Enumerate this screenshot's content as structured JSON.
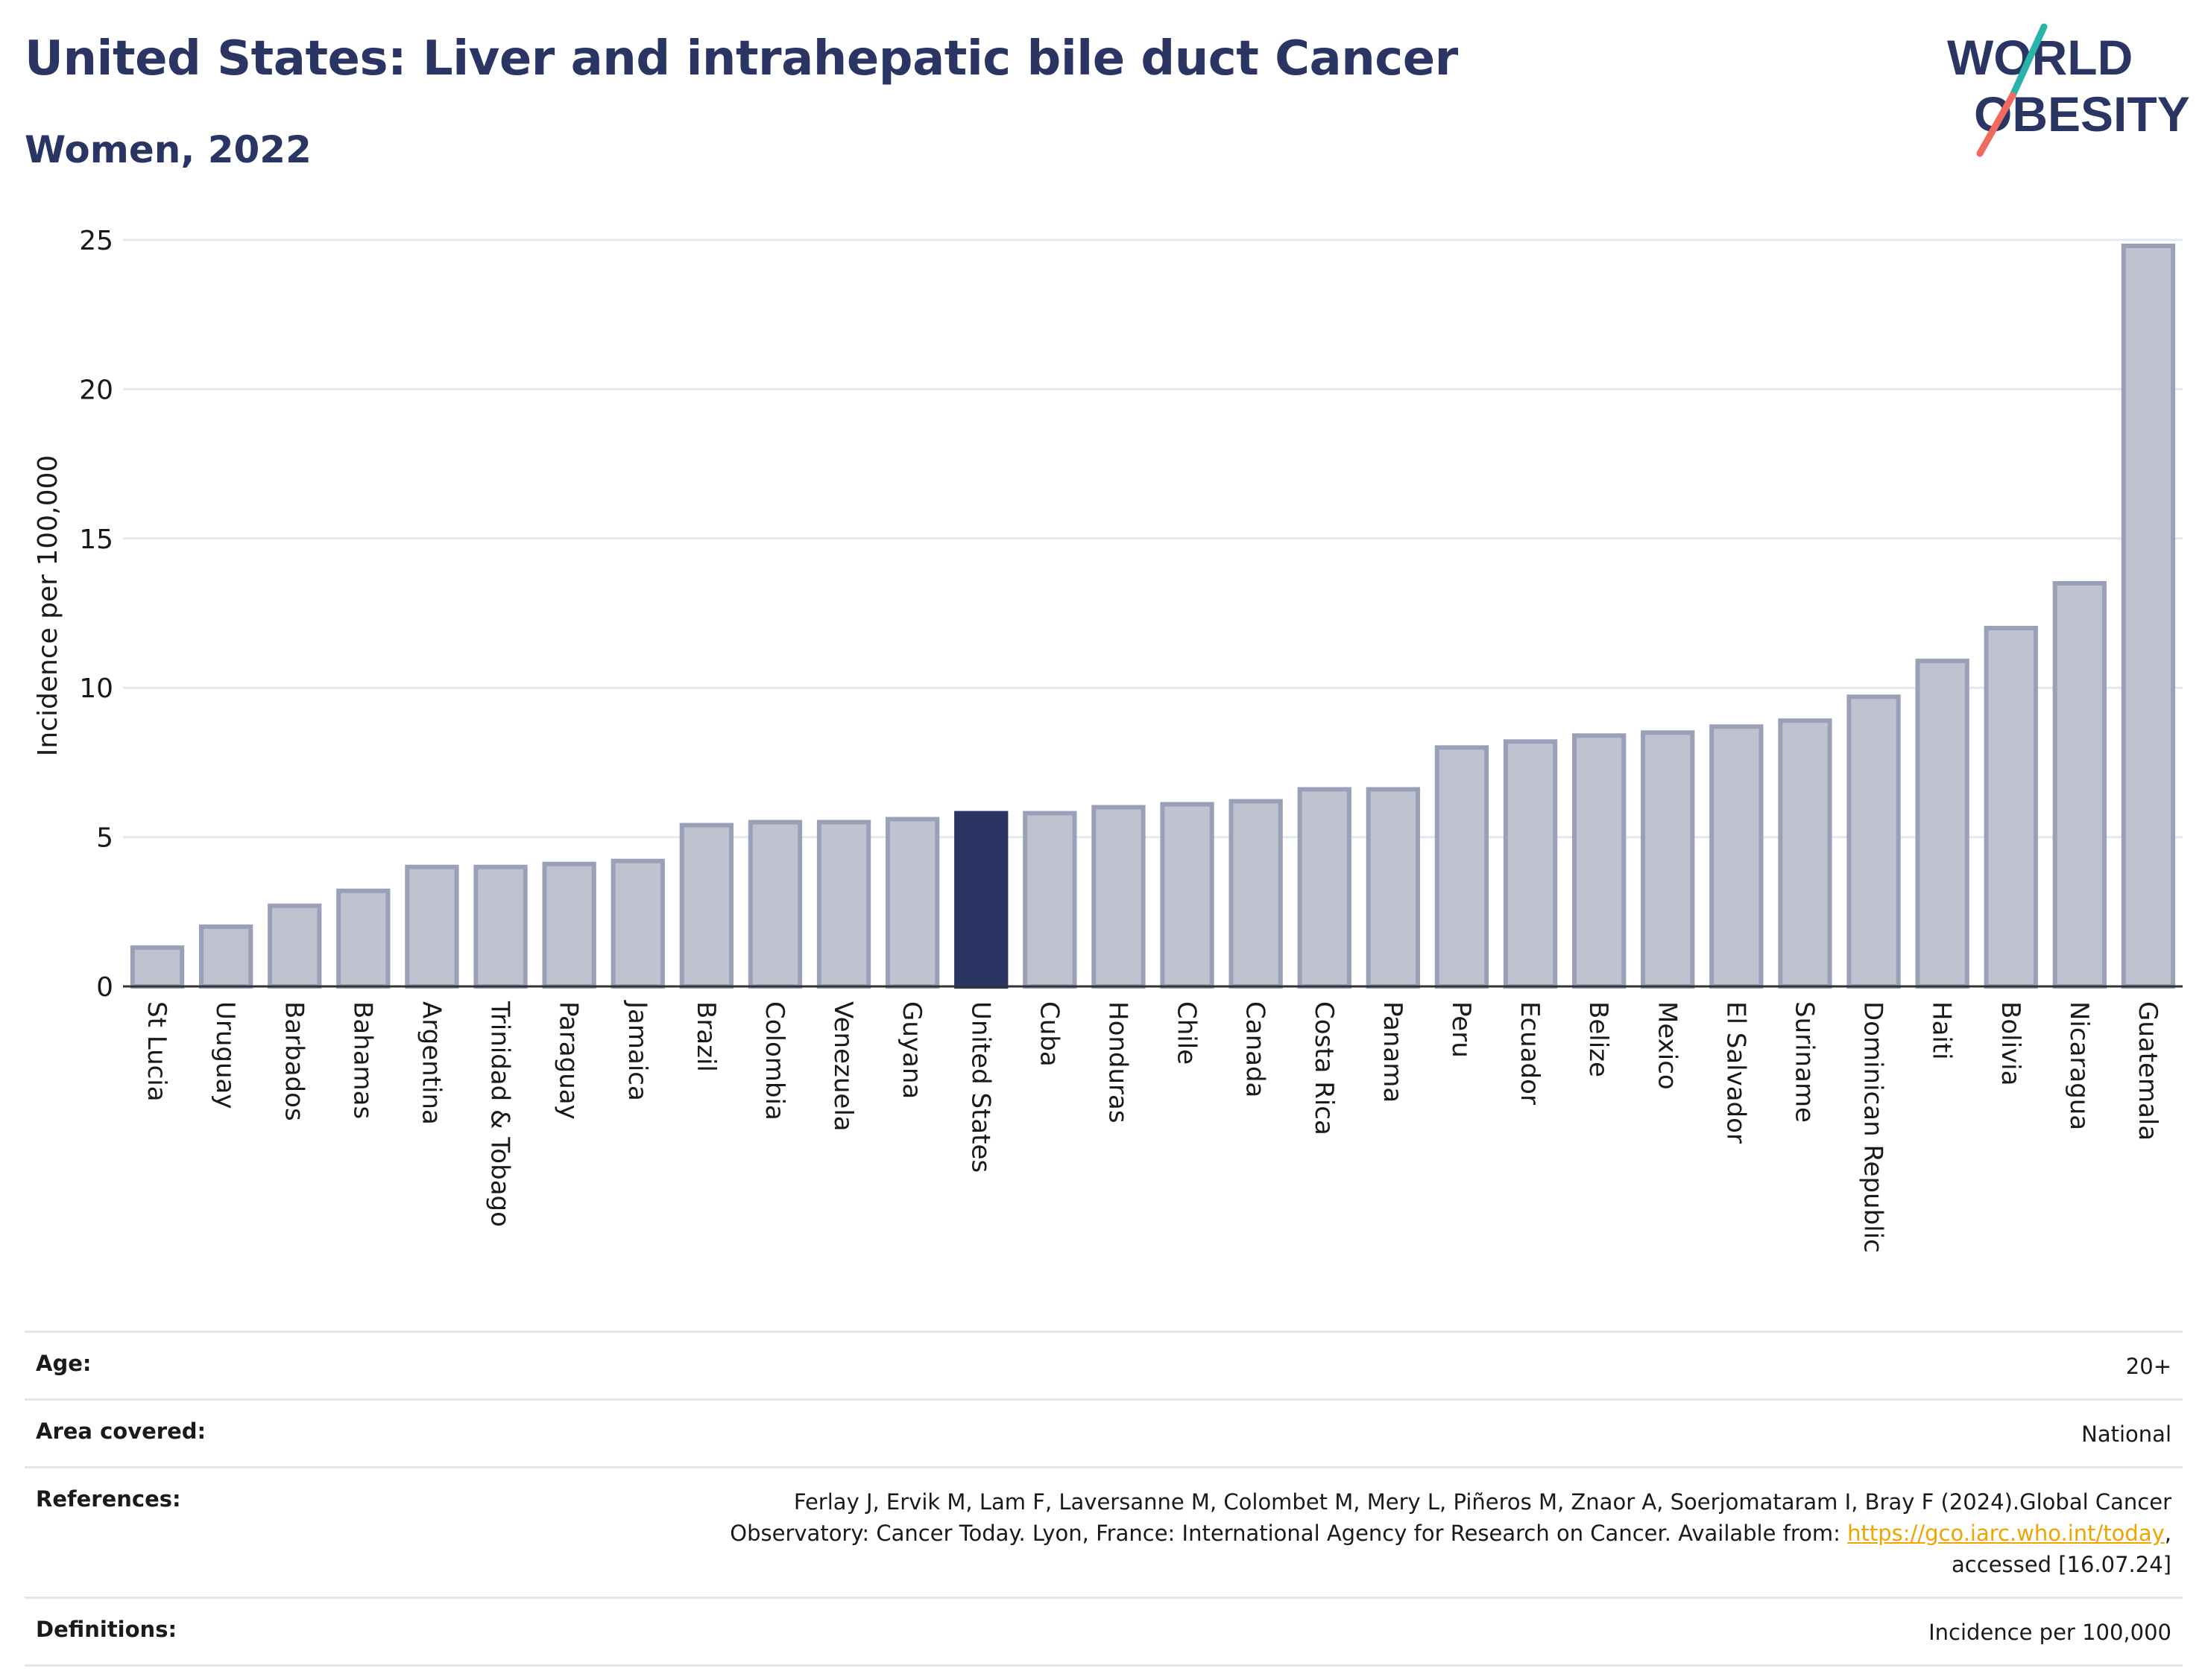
{
  "title": "United States: Liver and intrahepatic bile duct Cancer",
  "subtitle": "Women, 2022",
  "logo": {
    "line1": "WORLD",
    "line2": "OBESITY",
    "colors": {
      "text": "#2b3563",
      "stroke_top": "#2ab3a9",
      "stroke_bottom": "#ef6b5f"
    }
  },
  "colors": {
    "bar_default": "#bfc3d0",
    "bar_default_border": "#9aa0b8",
    "bar_highlight": "#2b3563",
    "axis": "#333333",
    "grid": "#e6e8ef"
  },
  "chart_data": {
    "type": "bar",
    "ylabel": "Incidence per 100,000",
    "xlabel": "",
    "ylim": [
      0,
      25
    ],
    "yticks": [
      0,
      5,
      10,
      15,
      20,
      25
    ],
    "grid": true,
    "highlight": "United States",
    "categories": [
      "St Lucia",
      "Uruguay",
      "Barbados",
      "Bahamas",
      "Argentina",
      "Trinidad & Tobago",
      "Paraguay",
      "Jamaica",
      "Brazil",
      "Colombia",
      "Venezuela",
      "Guyana",
      "United States",
      "Cuba",
      "Honduras",
      "Chile",
      "Canada",
      "Costa Rica",
      "Panama",
      "Peru",
      "Ecuador",
      "Belize",
      "Mexico",
      "El Salvador",
      "Suriname",
      "Dominican Republic",
      "Haiti",
      "Bolivia",
      "Nicaragua",
      "Guatemala"
    ],
    "values": [
      1.3,
      2.0,
      2.7,
      3.2,
      4.0,
      4.0,
      4.1,
      4.2,
      5.4,
      5.5,
      5.5,
      5.6,
      5.8,
      5.8,
      6.0,
      6.1,
      6.2,
      6.6,
      6.6,
      8.0,
      8.2,
      8.4,
      8.5,
      8.7,
      8.9,
      9.7,
      10.9,
      12.0,
      13.5,
      24.8
    ]
  },
  "meta": {
    "age_label": "Age:",
    "age_value": "20+",
    "area_label": "Area covered:",
    "area_value": "National",
    "references_label": "References:",
    "references_line1": "Ferlay J, Ervik M, Lam F, Laversanne M, Colombet M, Mery L, Piñeros M, Znaor A, Soerjomataram I, Bray F (2024).Global Cancer",
    "references_line2_prefix": "Observatory: Cancer Today. Lyon, France: International Agency for Research on Cancer. Available from: ",
    "references_link": "https://gco.iarc.who.int/today",
    "references_line2_suffix": ",",
    "references_line3": "accessed [16.07.24]",
    "definitions_label": "Definitions:",
    "definitions_value": "Incidence per 100,000"
  }
}
